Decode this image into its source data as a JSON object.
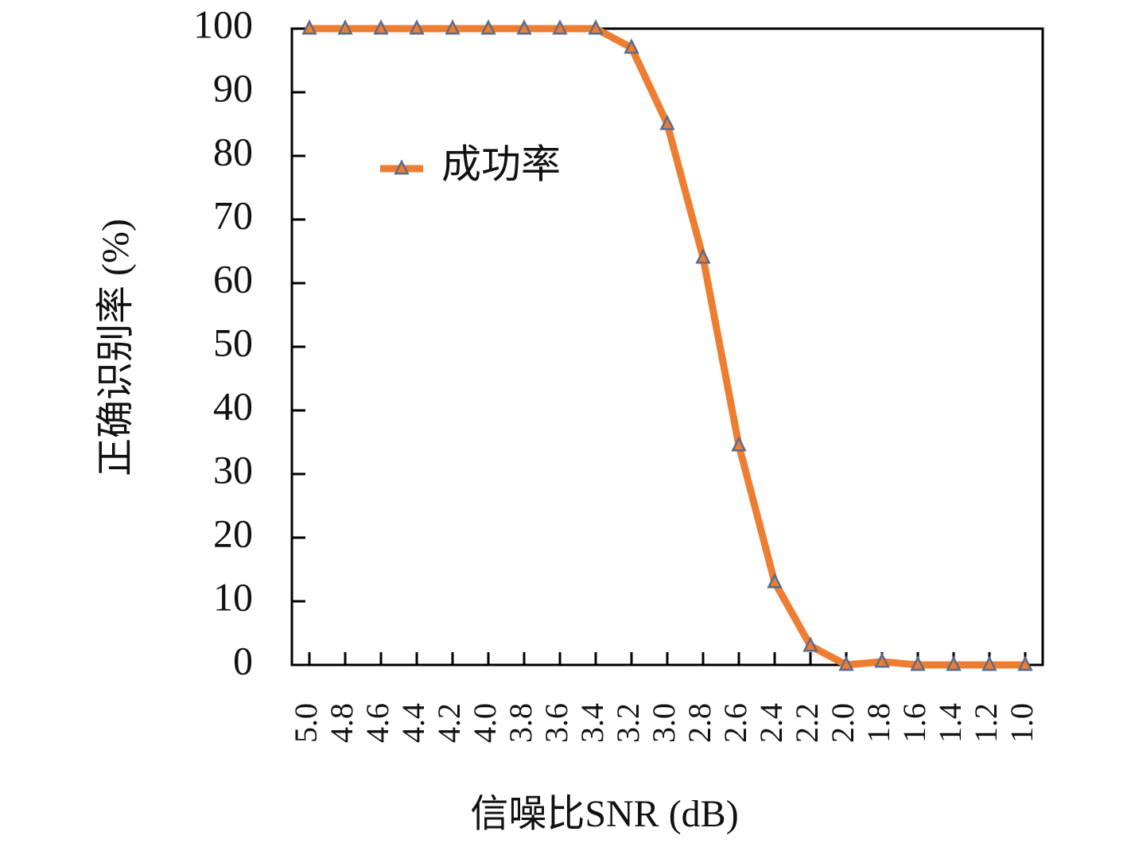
{
  "chart_data": {
    "type": "line",
    "x_label": "信噪比SNR (dB)",
    "y_label": "正确识别率 (%)",
    "categories": [
      "5.0",
      "4.8",
      "4.6",
      "4.4",
      "4.2",
      "4.0",
      "3.8",
      "3.6",
      "3.4",
      "3.2",
      "3.0",
      "2.8",
      "2.6",
      "2.4",
      "2.2",
      "2.0",
      "1.8",
      "1.6",
      "1.4",
      "1.2",
      "1.0"
    ],
    "series": [
      {
        "name": "成功率",
        "color": "#ed7d31",
        "marker_color": "#5b6b8c",
        "values": [
          100,
          100,
          100,
          100,
          100,
          100,
          100,
          100,
          100,
          97,
          85,
          64,
          34.5,
          13,
          3,
          0,
          0.5,
          0,
          0,
          0,
          0
        ]
      }
    ],
    "ylim": [
      0,
      100
    ],
    "yticks": [
      0,
      10,
      20,
      30,
      40,
      50,
      60,
      70,
      80,
      90,
      100
    ],
    "legend": "upper left"
  }
}
